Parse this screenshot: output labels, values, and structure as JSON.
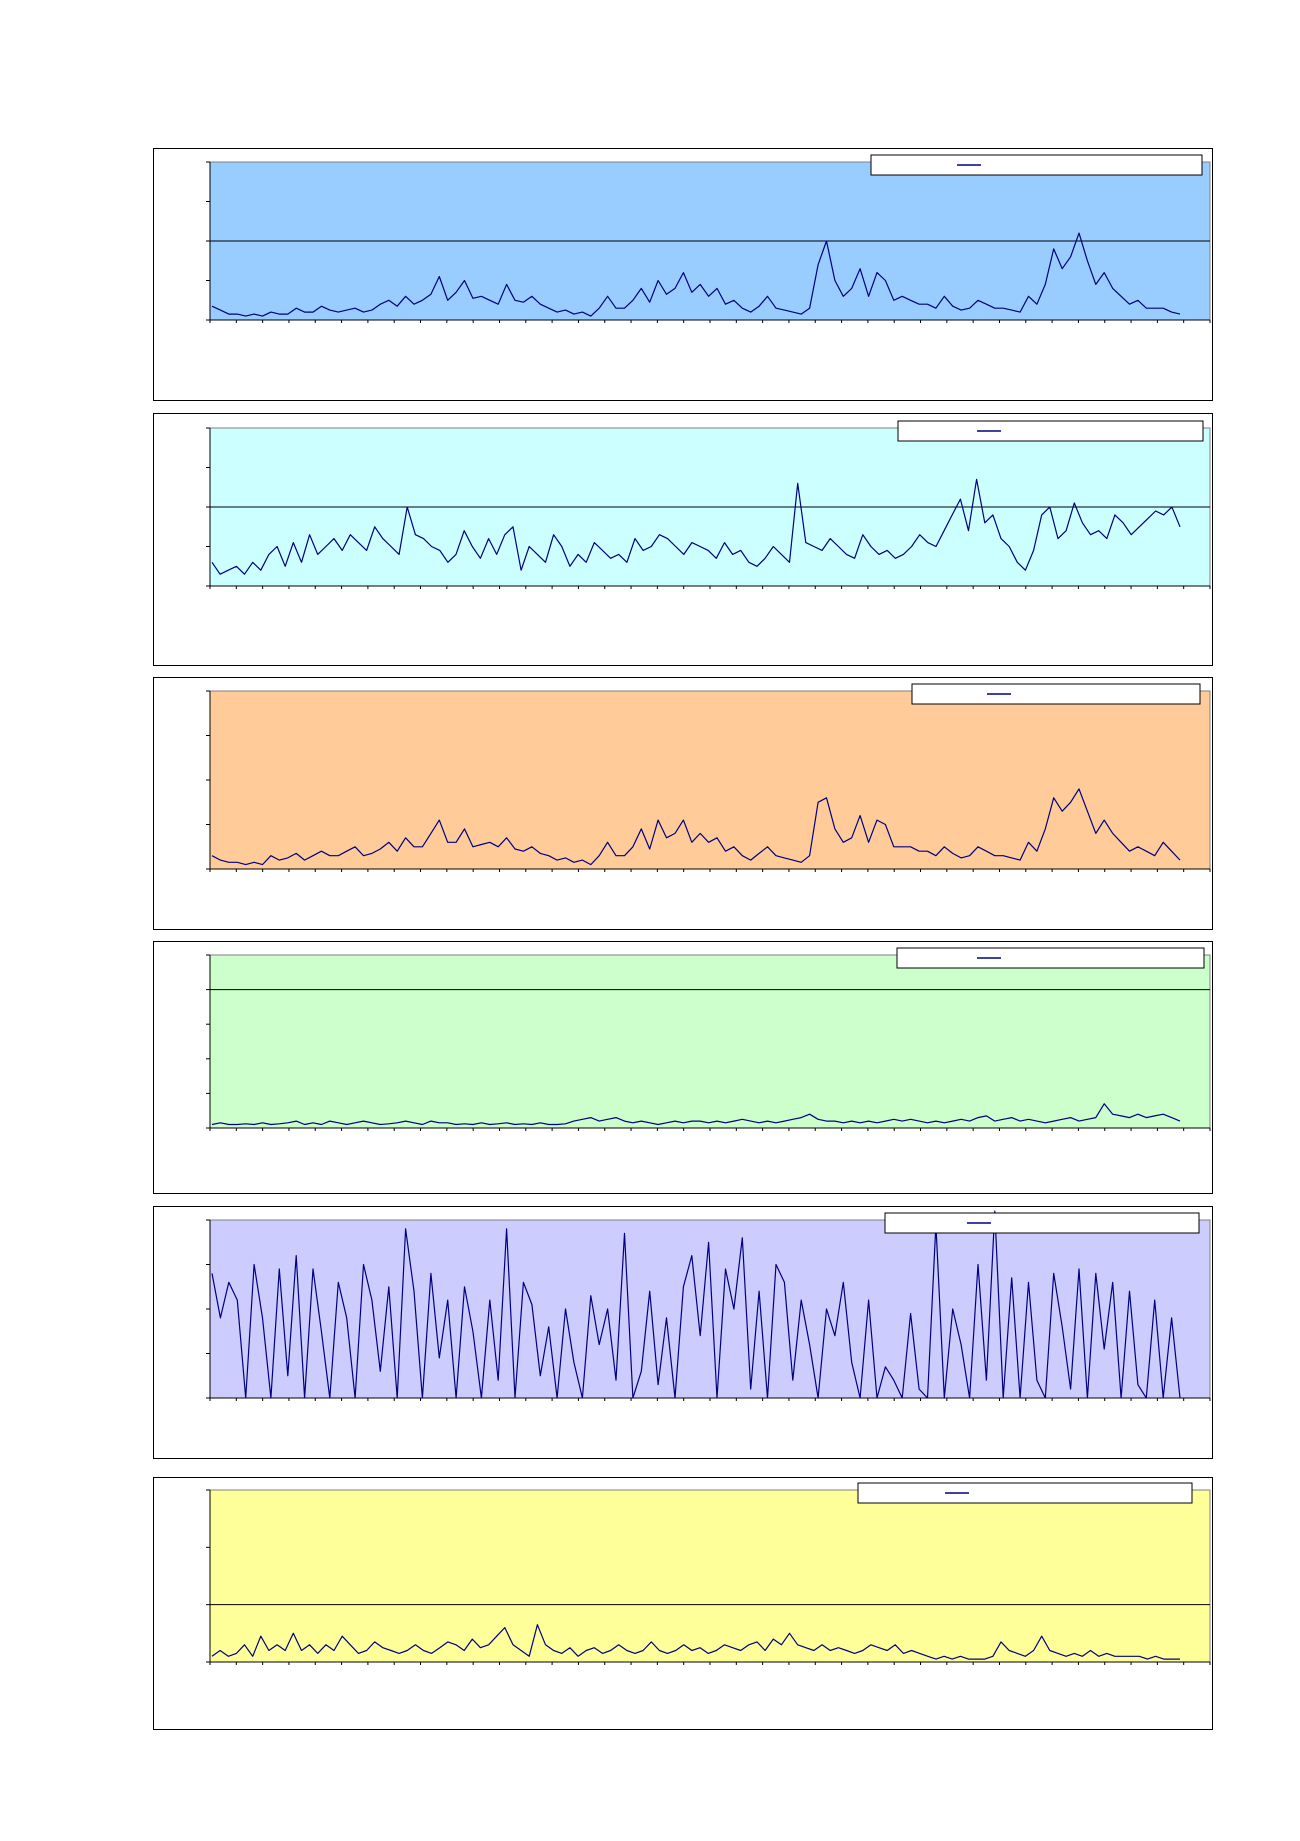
{
  "charts": [
    {
      "bg": "#99CCFF",
      "line_color": "#000080",
      "ylim": [
        0,
        4
      ],
      "threshold": 2
    },
    {
      "bg": "#CCFFFF",
      "line_color": "#000080",
      "ylim": [
        0,
        4
      ],
      "threshold": 2
    },
    {
      "bg": "#FFCC99",
      "line_color": "#000080",
      "ylim": [
        0,
        4
      ],
      "threshold": 4
    },
    {
      "bg": "#CCFFCC",
      "line_color": "#000080",
      "ylim": [
        0,
        5
      ],
      "threshold": 4
    },
    {
      "bg": "#CCCCFF",
      "line_color": "#000080",
      "ylim": [
        0,
        4
      ],
      "threshold": 4
    },
    {
      "bg": "#FFFF99",
      "line_color": "#000080",
      "ylim": [
        0,
        3
      ],
      "threshold": 1
    }
  ],
  "chart_data": [
    {
      "type": "line",
      "ylim": [
        0,
        4
      ],
      "grid": false,
      "legend": "top-right",
      "values": [
        0.35,
        0.25,
        0.15,
        0.15,
        0.1,
        0.15,
        0.1,
        0.2,
        0.15,
        0.15,
        0.3,
        0.2,
        0.2,
        0.35,
        0.25,
        0.2,
        0.25,
        0.3,
        0.2,
        0.25,
        0.4,
        0.5,
        0.35,
        0.6,
        0.4,
        0.5,
        0.65,
        1.1,
        0.5,
        0.7,
        1.0,
        0.55,
        0.6,
        0.5,
        0.4,
        0.9,
        0.5,
        0.45,
        0.6,
        0.4,
        0.3,
        0.2,
        0.25,
        0.15,
        0.2,
        0.1,
        0.3,
        0.6,
        0.3,
        0.3,
        0.5,
        0.8,
        0.45,
        1.0,
        0.65,
        0.8,
        1.2,
        0.7,
        0.9,
        0.6,
        0.8,
        0.4,
        0.5,
        0.3,
        0.2,
        0.35,
        0.6,
        0.3,
        0.25,
        0.2,
        0.15,
        0.3,
        1.4,
        2.0,
        1.0,
        0.6,
        0.8,
        1.3,
        0.6,
        1.2,
        1.0,
        0.5,
        0.6,
        0.5,
        0.4,
        0.4,
        0.3,
        0.6,
        0.35,
        0.25,
        0.3,
        0.5,
        0.4,
        0.3,
        0.3,
        0.25,
        0.2,
        0.6,
        0.4,
        0.9,
        1.8,
        1.3,
        1.6,
        2.2,
        1.5,
        0.9,
        1.2,
        0.8,
        0.6,
        0.4,
        0.5,
        0.3,
        0.3,
        0.3,
        0.2,
        0.15
      ]
    },
    {
      "type": "line",
      "ylim": [
        0,
        4
      ],
      "grid": false,
      "legend": "top-right",
      "values": [
        0.6,
        0.3,
        0.4,
        0.5,
        0.3,
        0.6,
        0.4,
        0.8,
        1.0,
        0.5,
        1.1,
        0.6,
        1.3,
        0.8,
        1.0,
        1.2,
        0.9,
        1.3,
        1.1,
        0.9,
        1.5,
        1.2,
        1.0,
        0.8,
        2.0,
        1.3,
        1.2,
        1.0,
        0.9,
        0.6,
        0.8,
        1.4,
        1.0,
        0.7,
        1.2,
        0.8,
        1.3,
        1.5,
        0.4,
        1.0,
        0.8,
        0.6,
        1.3,
        1.0,
        0.5,
        0.8,
        0.6,
        1.1,
        0.9,
        0.7,
        0.8,
        0.6,
        1.2,
        0.9,
        1.0,
        1.3,
        1.2,
        1.0,
        0.8,
        1.1,
        1.0,
        0.9,
        0.7,
        1.1,
        0.8,
        0.9,
        0.6,
        0.5,
        0.7,
        1.0,
        0.8,
        0.6,
        2.6,
        1.1,
        1.0,
        0.9,
        1.2,
        1.0,
        0.8,
        0.7,
        1.3,
        1.0,
        0.8,
        0.9,
        0.7,
        0.8,
        1.0,
        1.3,
        1.1,
        1.0,
        1.4,
        1.8,
        2.2,
        1.4,
        2.7,
        1.6,
        1.8,
        1.2,
        1.0,
        0.6,
        0.4,
        0.9,
        1.8,
        2.0,
        1.2,
        1.4,
        2.1,
        1.6,
        1.3,
        1.4,
        1.2,
        1.8,
        1.6,
        1.3,
        1.5,
        1.7,
        1.9,
        1.8,
        2.0,
        1.5
      ]
    },
    {
      "type": "line",
      "ylim": [
        0,
        4
      ],
      "grid": false,
      "legend": "top-right",
      "values": [
        0.3,
        0.2,
        0.15,
        0.15,
        0.1,
        0.15,
        0.1,
        0.3,
        0.2,
        0.25,
        0.35,
        0.2,
        0.3,
        0.4,
        0.3,
        0.3,
        0.4,
        0.5,
        0.3,
        0.35,
        0.45,
        0.6,
        0.4,
        0.7,
        0.5,
        0.5,
        0.8,
        1.1,
        0.6,
        0.6,
        0.9,
        0.5,
        0.55,
        0.6,
        0.5,
        0.7,
        0.45,
        0.4,
        0.5,
        0.35,
        0.3,
        0.2,
        0.25,
        0.15,
        0.2,
        0.1,
        0.3,
        0.6,
        0.3,
        0.3,
        0.5,
        0.9,
        0.45,
        1.1,
        0.7,
        0.8,
        1.1,
        0.6,
        0.8,
        0.6,
        0.7,
        0.4,
        0.5,
        0.3,
        0.2,
        0.35,
        0.5,
        0.3,
        0.25,
        0.2,
        0.15,
        0.3,
        1.5,
        1.6,
        0.9,
        0.6,
        0.7,
        1.2,
        0.6,
        1.1,
        1.0,
        0.5,
        0.5,
        0.5,
        0.4,
        0.4,
        0.3,
        0.5,
        0.35,
        0.25,
        0.3,
        0.5,
        0.4,
        0.3,
        0.3,
        0.25,
        0.2,
        0.6,
        0.4,
        0.9,
        1.6,
        1.3,
        1.5,
        1.8,
        1.3,
        0.8,
        1.1,
        0.8,
        0.6,
        0.4,
        0.5,
        0.4,
        0.3,
        0.6,
        0.4,
        0.2
      ]
    },
    {
      "type": "line",
      "ylim": [
        0,
        5
      ],
      "grid": false,
      "legend": "top-right",
      "values": [
        0.1,
        0.15,
        0.1,
        0.1,
        0.12,
        0.1,
        0.15,
        0.1,
        0.12,
        0.15,
        0.2,
        0.1,
        0.15,
        0.1,
        0.2,
        0.15,
        0.1,
        0.15,
        0.2,
        0.15,
        0.1,
        0.12,
        0.15,
        0.2,
        0.15,
        0.1,
        0.2,
        0.15,
        0.15,
        0.1,
        0.12,
        0.1,
        0.15,
        0.1,
        0.12,
        0.15,
        0.1,
        0.12,
        0.1,
        0.15,
        0.1,
        0.1,
        0.12,
        0.2,
        0.25,
        0.3,
        0.2,
        0.25,
        0.3,
        0.2,
        0.15,
        0.2,
        0.15,
        0.1,
        0.15,
        0.2,
        0.15,
        0.2,
        0.2,
        0.15,
        0.2,
        0.15,
        0.2,
        0.25,
        0.2,
        0.15,
        0.2,
        0.15,
        0.2,
        0.25,
        0.3,
        0.4,
        0.25,
        0.2,
        0.2,
        0.15,
        0.2,
        0.15,
        0.2,
        0.15,
        0.2,
        0.25,
        0.2,
        0.25,
        0.2,
        0.15,
        0.2,
        0.15,
        0.2,
        0.25,
        0.2,
        0.3,
        0.35,
        0.2,
        0.25,
        0.3,
        0.2,
        0.25,
        0.2,
        0.15,
        0.2,
        0.25,
        0.3,
        0.2,
        0.25,
        0.3,
        0.7,
        0.4,
        0.35,
        0.3,
        0.4,
        0.3,
        0.35,
        0.4,
        0.3,
        0.2
      ]
    },
    {
      "type": "line",
      "ylim": [
        0,
        4
      ],
      "grid": false,
      "legend": "top-right",
      "values": [
        2.8,
        1.8,
        2.6,
        2.2,
        0.0,
        3.0,
        1.8,
        0.0,
        2.9,
        0.5,
        3.2,
        0.0,
        2.9,
        1.5,
        0.0,
        2.6,
        1.8,
        0.0,
        3.0,
        2.2,
        0.6,
        2.5,
        0.0,
        3.8,
        2.4,
        0.0,
        2.8,
        0.9,
        2.2,
        0.0,
        2.5,
        1.5,
        0.0,
        2.2,
        0.4,
        3.8,
        0.0,
        2.6,
        2.1,
        0.5,
        1.6,
        0.0,
        2.0,
        0.8,
        0.0,
        2.3,
        1.2,
        2.0,
        0.4,
        3.7,
        0.0,
        0.6,
        2.4,
        0.3,
        1.8,
        0.0,
        2.5,
        3.2,
        1.4,
        3.5,
        0.0,
        2.9,
        2.0,
        3.6,
        0.2,
        2.4,
        0.0,
        3.0,
        2.6,
        0.4,
        2.2,
        1.2,
        0.0,
        2.0,
        1.4,
        2.6,
        0.8,
        0.0,
        2.2,
        0.0,
        0.7,
        0.4,
        0.0,
        1.9,
        0.2,
        0.0,
        3.9,
        0.0,
        2.0,
        1.2,
        0.0,
        3.0,
        0.4,
        4.2,
        0.0,
        2.7,
        0.0,
        2.6,
        0.4,
        0.0,
        2.8,
        1.6,
        0.2,
        2.9,
        0.0,
        2.8,
        1.1,
        2.6,
        0.0,
        2.4,
        0.3,
        0.0,
        2.2,
        0.0,
        1.8,
        0.0
      ]
    },
    {
      "type": "line",
      "ylim": [
        0,
        3
      ],
      "grid": false,
      "legend": "top-right",
      "values": [
        0.1,
        0.2,
        0.1,
        0.15,
        0.3,
        0.1,
        0.45,
        0.2,
        0.3,
        0.2,
        0.5,
        0.2,
        0.3,
        0.15,
        0.3,
        0.2,
        0.45,
        0.3,
        0.15,
        0.2,
        0.35,
        0.25,
        0.2,
        0.15,
        0.2,
        0.3,
        0.2,
        0.15,
        0.25,
        0.35,
        0.3,
        0.2,
        0.4,
        0.25,
        0.3,
        0.45,
        0.6,
        0.3,
        0.2,
        0.1,
        0.65,
        0.3,
        0.2,
        0.15,
        0.25,
        0.1,
        0.2,
        0.25,
        0.15,
        0.2,
        0.3,
        0.2,
        0.15,
        0.2,
        0.35,
        0.2,
        0.15,
        0.2,
        0.3,
        0.2,
        0.25,
        0.15,
        0.2,
        0.3,
        0.25,
        0.2,
        0.3,
        0.35,
        0.2,
        0.4,
        0.3,
        0.5,
        0.3,
        0.25,
        0.2,
        0.3,
        0.2,
        0.25,
        0.2,
        0.15,
        0.2,
        0.3,
        0.25,
        0.2,
        0.3,
        0.15,
        0.2,
        0.15,
        0.1,
        0.05,
        0.1,
        0.05,
        0.1,
        0.05,
        0.05,
        0.05,
        0.1,
        0.35,
        0.2,
        0.15,
        0.1,
        0.2,
        0.45,
        0.2,
        0.15,
        0.1,
        0.15,
        0.1,
        0.2,
        0.1,
        0.15,
        0.1,
        0.1,
        0.1,
        0.1,
        0.05,
        0.1,
        0.05,
        0.05,
        0.05
      ]
    }
  ]
}
